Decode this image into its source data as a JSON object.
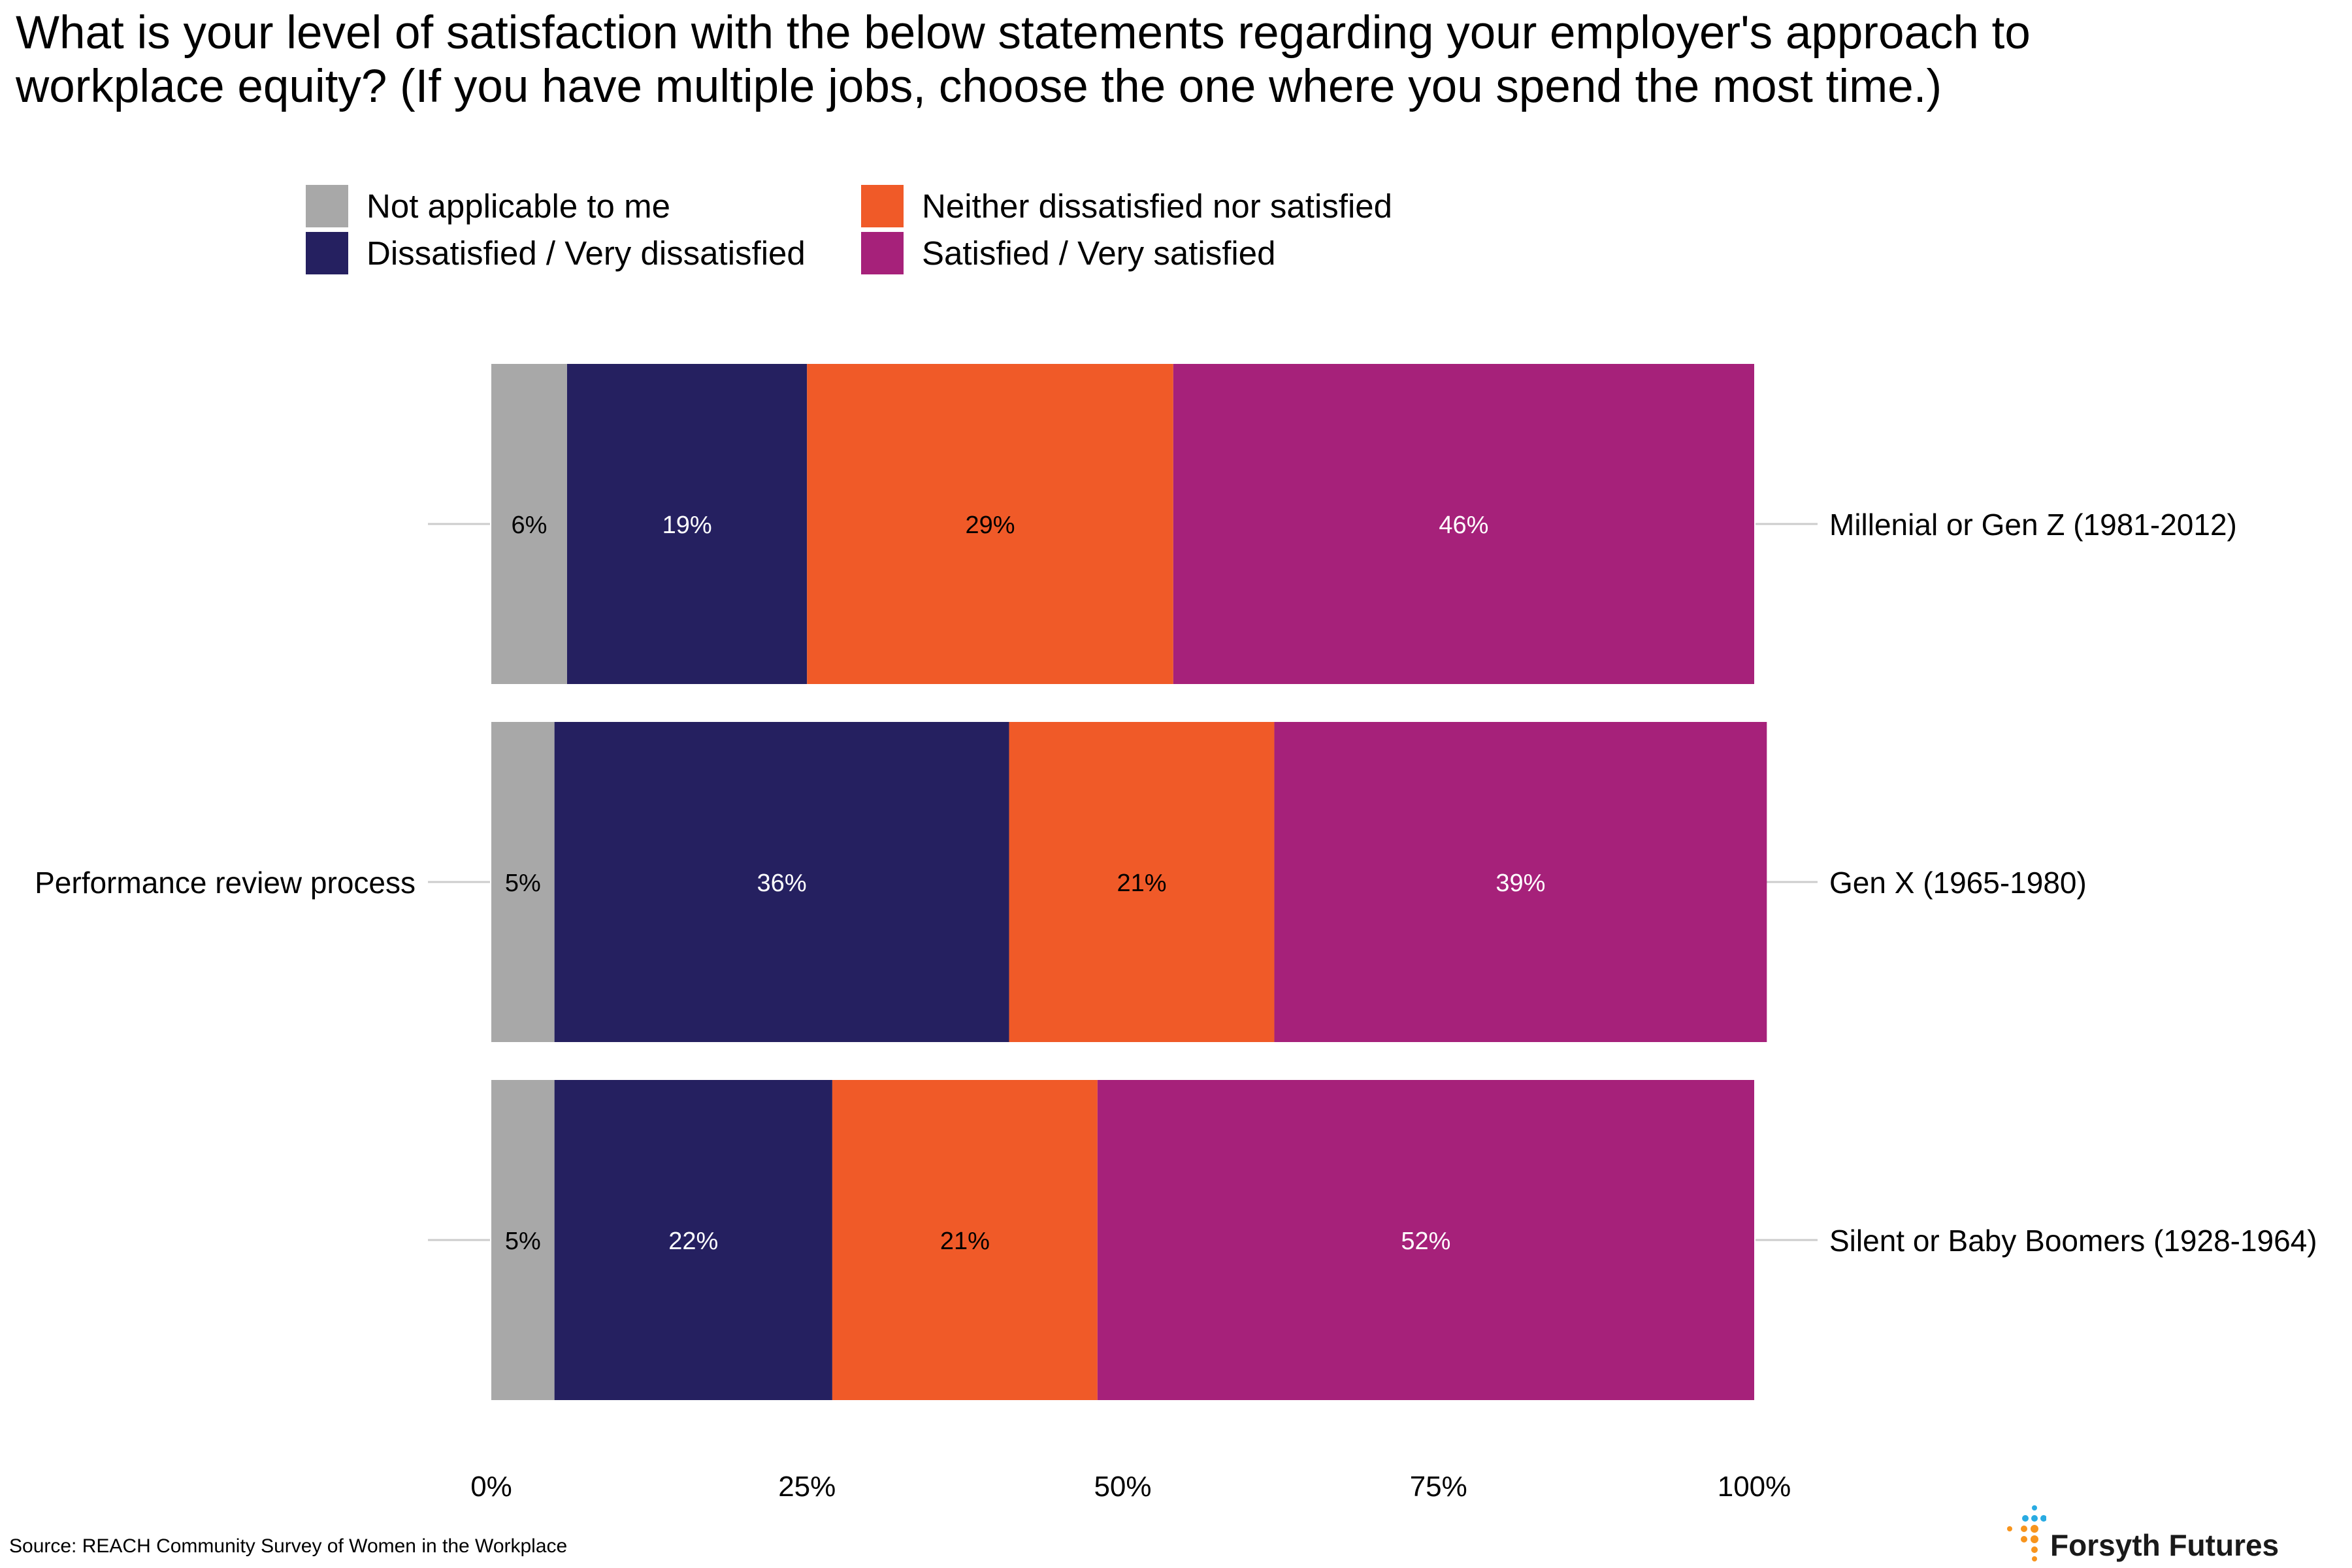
{
  "chart_data": {
    "type": "bar",
    "orientation": "horizontal-stacked-100",
    "title": "What is your level of satisfaction with the below statements regarding your employer's approach to workplace equity? (If you have multiple jobs, choose the one where you spend the most time.)",
    "facet_label": "Performance review process",
    "categories": [
      "Millenial or Gen Z (1981-2012)",
      "Gen X (1965-1980)",
      "Silent or Baby Boomers (1928-1964)"
    ],
    "series": [
      {
        "name": "Not applicable to me",
        "color": "#a8a8a8",
        "text_color": "#000000",
        "values": [
          6,
          5,
          5
        ],
        "labels": [
          "6%",
          "5%",
          "5%"
        ]
      },
      {
        "name": "Dissatisfied / Very dissatisfied",
        "color": "#252060",
        "text_color": "#ffffff",
        "values": [
          19,
          36,
          22
        ],
        "labels": [
          "19%",
          "36%",
          "22%"
        ]
      },
      {
        "name": "Neither dissatisfied nor satisfied",
        "color": "#f05a28",
        "text_color": "#000000",
        "values": [
          29,
          21,
          21
        ],
        "labels": [
          "29%",
          "21%",
          "21%"
        ]
      },
      {
        "name": "Satisfied / Very satisfied",
        "color": "#a6217a",
        "text_color": "#ffffff",
        "values": [
          46,
          39,
          52
        ],
        "labels": [
          "46%",
          "39%",
          "52%"
        ]
      }
    ],
    "x_ticks": [
      "0%",
      "25%",
      "50%",
      "75%",
      "100%"
    ],
    "xlim": [
      0,
      100
    ],
    "legend_position": "top"
  },
  "legend": [
    {
      "label": "Not applicable to me",
      "color": "#a8a8a8"
    },
    {
      "label": "Neither dissatisfied nor satisfied",
      "color": "#f05a28"
    },
    {
      "label": "Dissatisfied / Very dissatisfied",
      "color": "#252060"
    },
    {
      "label": "Satisfied / Very satisfied",
      "color": "#a6217a"
    }
  ],
  "source": "Source: REACH Community Survey of Women in the Workplace",
  "brand": {
    "name": "Forsyth Futures",
    "dot_colors": [
      "#29abe2",
      "#f7941d"
    ]
  }
}
